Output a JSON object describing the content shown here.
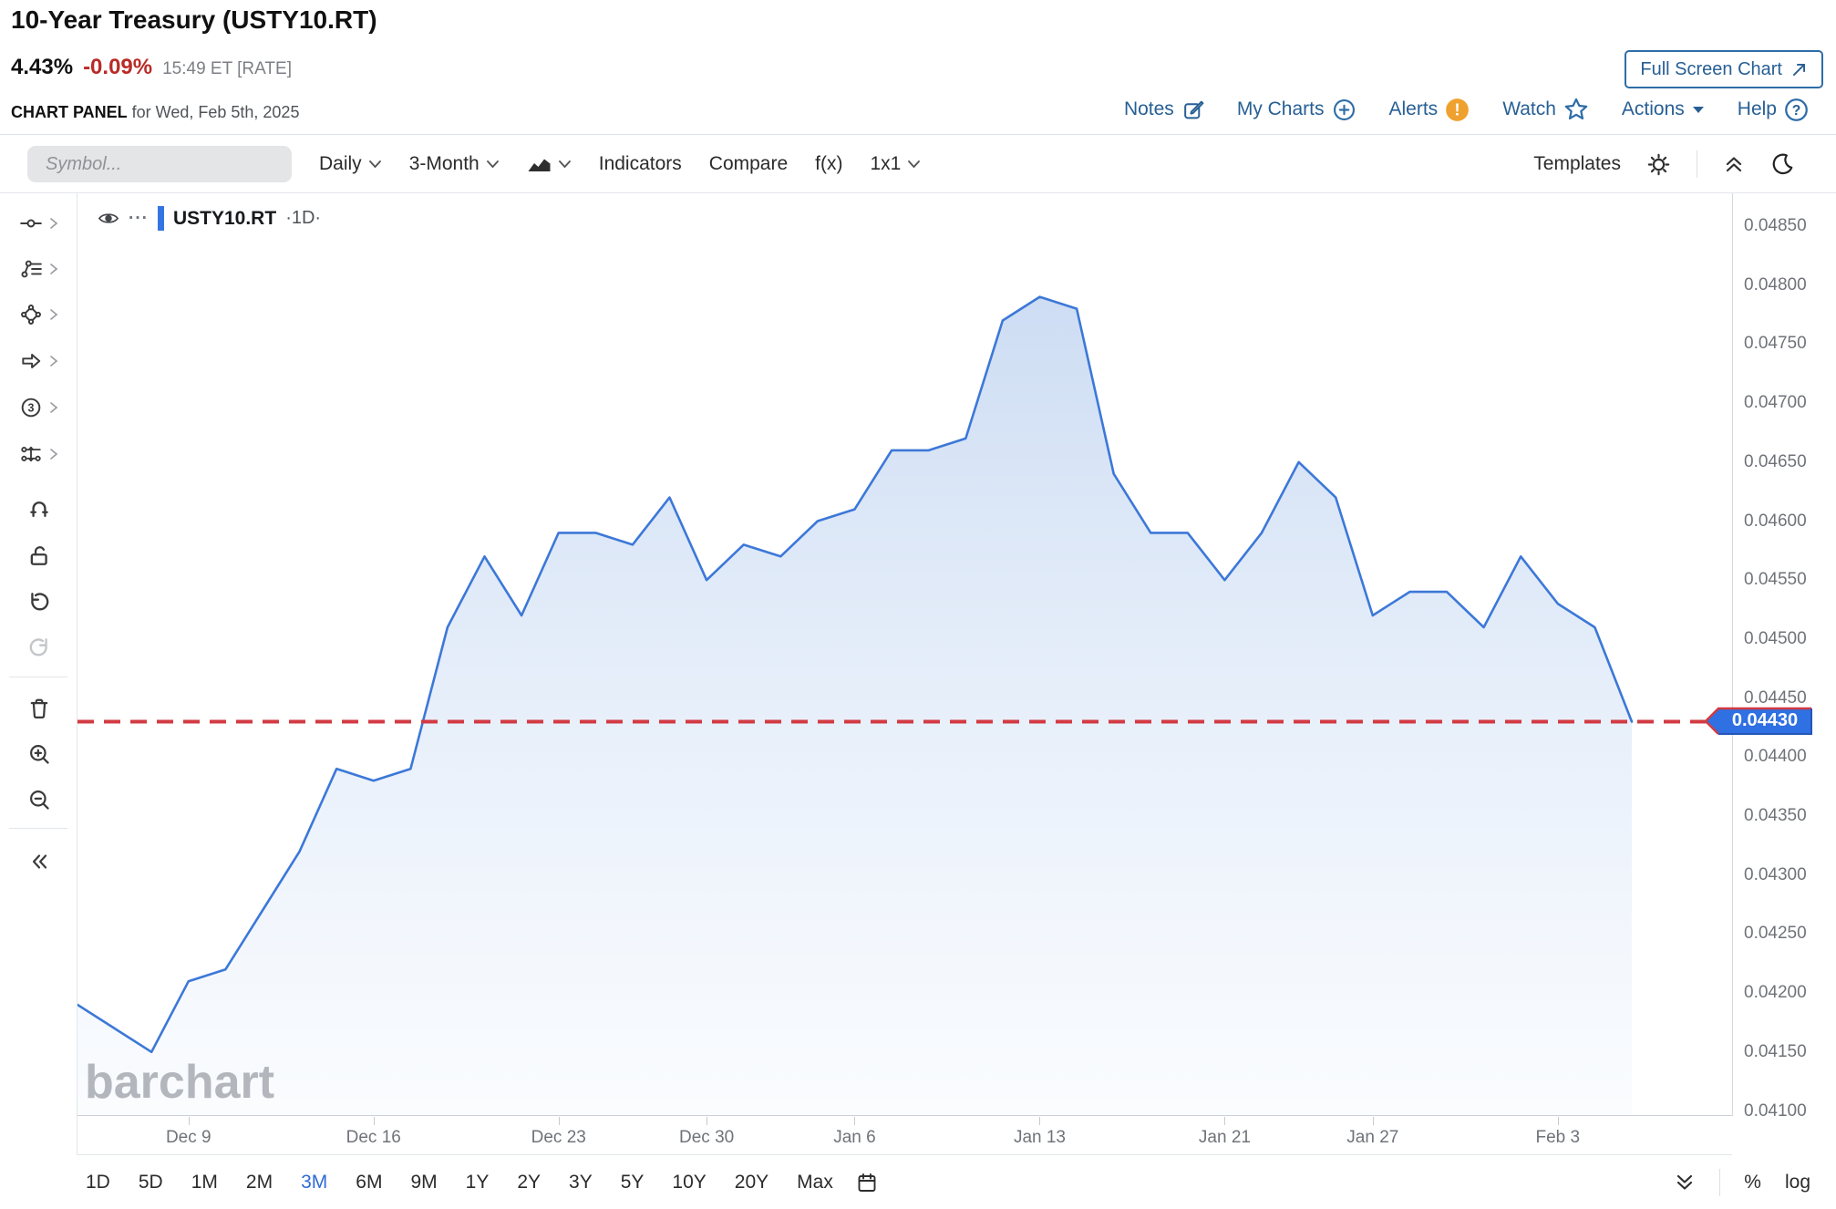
{
  "header": {
    "title": "10-Year Treasury (USTY10.RT)",
    "last": "4.43%",
    "change": "-0.09%",
    "timestamp": "15:49 ET [RATE]",
    "panel_label": "CHART PANEL",
    "panel_date": " for Wed, Feb 5th, 2025",
    "full_screen_button": "Full Screen Chart",
    "links": [
      {
        "label": "Notes",
        "icon": "note-edit-icon"
      },
      {
        "label": "My Charts",
        "icon": "plus-circle-icon"
      },
      {
        "label": "Alerts",
        "icon": "alert-badge-icon"
      },
      {
        "label": "Watch",
        "icon": "star-icon"
      },
      {
        "label": "Actions",
        "icon": "caret-down-icon"
      },
      {
        "label": "Help",
        "icon": "question-circle-icon"
      }
    ],
    "alert_badge": "!"
  },
  "toolbar": {
    "symbol_placeholder": "Symbol...",
    "period_dropdown": "Daily",
    "range_dropdown": "3-Month",
    "chart_type_icon": "area-chart-icon",
    "indicators": "Indicators",
    "compare": "Compare",
    "fx": "f(x)",
    "layout": "1x1",
    "templates": "Templates"
  },
  "legend": {
    "symbol": "USTY10.RT",
    "timeframe": "·1D·"
  },
  "watermark": "barchart",
  "sidebar_tools": [
    "trend-line",
    "drawing-list",
    "shapes",
    "arrow-annotation",
    "number-annotation",
    "measure-pattern",
    "magnet",
    "unlock",
    "undo",
    "redo",
    "delete",
    "zoom-in",
    "zoom-out",
    "collapse-sidebar"
  ],
  "chart_data": {
    "type": "area",
    "title": "10-Year Treasury (USTY10.RT) daily rate",
    "grid": false,
    "legend_position": "top-left",
    "ylim": [
      0.041,
      0.0485
    ],
    "y_tick_step": 0.0005,
    "dates": [
      "Dec 4",
      "Dec 5",
      "Dec 6",
      "Dec 9",
      "Dec 10",
      "Dec 11",
      "Dec 12",
      "Dec 13",
      "Dec 16",
      "Dec 17",
      "Dec 18",
      "Dec 19",
      "Dec 20",
      "Dec 23",
      "Dec 24",
      "Dec 26",
      "Dec 27",
      "Dec 30",
      "Dec 31",
      "Jan 2",
      "Jan 3",
      "Jan 6",
      "Jan 7",
      "Jan 8",
      "Jan 9",
      "Jan 10",
      "Jan 13",
      "Jan 14",
      "Jan 15",
      "Jan 16",
      "Jan 17",
      "Jan 21",
      "Jan 22",
      "Jan 23",
      "Jan 24",
      "Jan 27",
      "Jan 28",
      "Jan 29",
      "Jan 30",
      "Jan 31",
      "Feb 3",
      "Feb 4",
      "Feb 5"
    ],
    "values": [
      0.0419,
      0.0417,
      0.0415,
      0.0421,
      0.0422,
      0.0427,
      0.0432,
      0.0439,
      0.0438,
      0.0439,
      0.0451,
      0.0457,
      0.0452,
      0.0459,
      0.0459,
      0.0458,
      0.0462,
      0.0455,
      0.0458,
      0.0457,
      0.046,
      0.0461,
      0.0466,
      0.0466,
      0.0467,
      0.0477,
      0.0479,
      0.0478,
      0.0464,
      0.0459,
      0.0459,
      0.0455,
      0.0459,
      0.0465,
      0.0462,
      0.0452,
      0.0454,
      0.0454,
      0.0451,
      0.0457,
      0.0453,
      0.0451,
      0.0443
    ],
    "x_ticks": [
      {
        "label": "Dec 9",
        "index": 3
      },
      {
        "label": "Dec 16",
        "index": 8
      },
      {
        "label": "Dec 23",
        "index": 13
      },
      {
        "label": "Dec 30",
        "index": 17
      },
      {
        "label": "Jan 6",
        "index": 21
      },
      {
        "label": "Jan 13",
        "index": 26
      },
      {
        "label": "Jan 21",
        "index": 31
      },
      {
        "label": "Jan 27",
        "index": 35
      },
      {
        "label": "Feb 3",
        "index": 40
      }
    ],
    "last_price_label": "0.04430",
    "last_price": 0.0443,
    "line_color": "#3c78d8",
    "area_top_color": "rgba(77,132,212,0.28)",
    "area_bottom_color": "rgba(130,175,235,0.04)",
    "dashed_line_color": "#d23a42",
    "tag_color": "#2f70e2"
  },
  "bottom_bar": {
    "ranges": [
      "1D",
      "5D",
      "1M",
      "2M",
      "3M",
      "6M",
      "9M",
      "1Y",
      "2Y",
      "3Y",
      "5Y",
      "10Y",
      "20Y",
      "Max"
    ],
    "active_range": "3M",
    "percent": "%",
    "log": "log"
  }
}
